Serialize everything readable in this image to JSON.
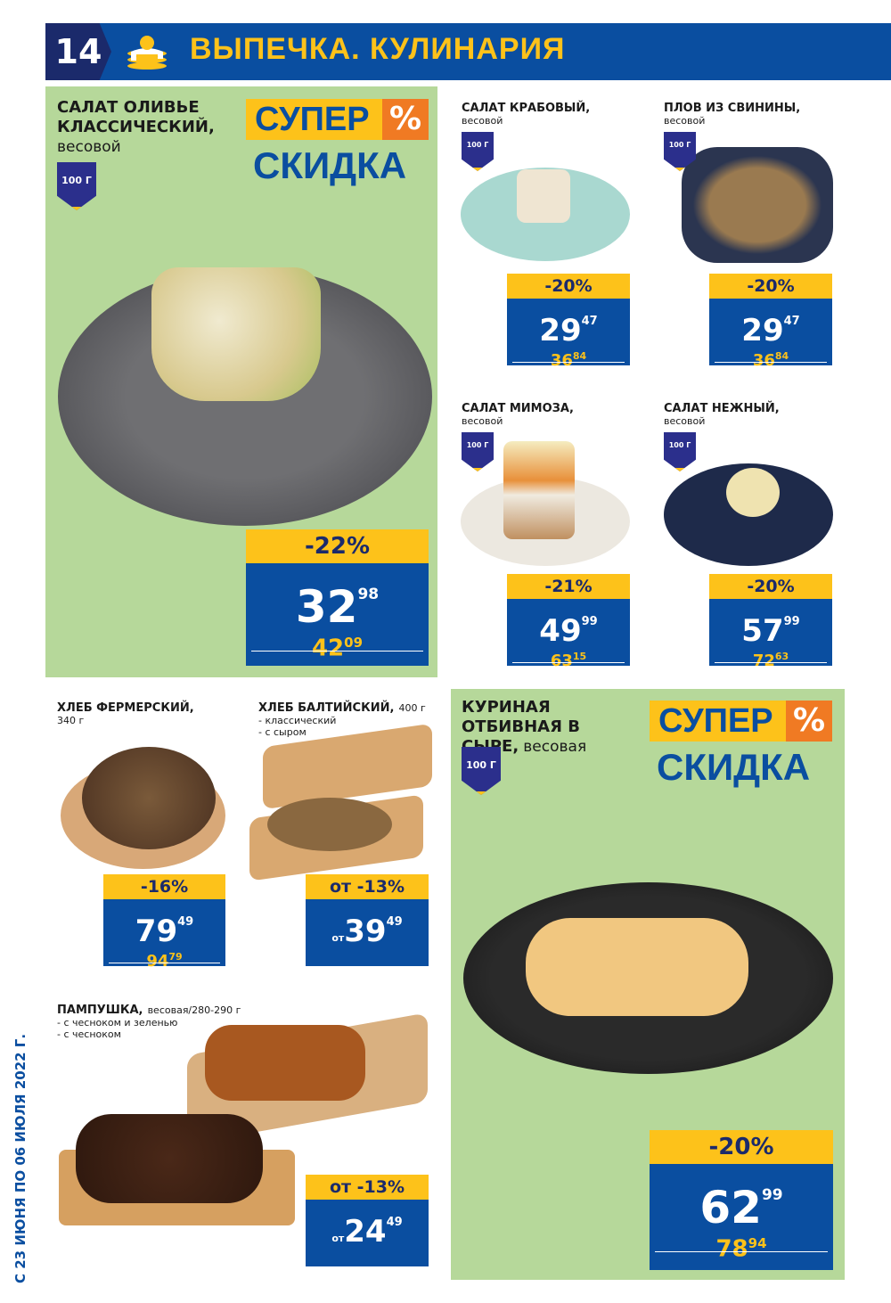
{
  "header": {
    "page_number": "14",
    "title": "ВЫПЕЧКА. КУЛИНАРИЯ",
    "icon": "pancake-stack-icon"
  },
  "colors": {
    "blue": "#0a4ea0",
    "yellow": "#fdc21a",
    "green": "#b6d89a",
    "navy": "#1b2a6b",
    "orange": "#f07a23"
  },
  "super_badge": {
    "line1": "СУПЕР",
    "percent": "%",
    "line2": "СКИДКА"
  },
  "validity": "С 23 ИЮНЯ ПО 06 ИЮЛЯ 2022 Г.",
  "products": [
    {
      "id": "olivie",
      "title": "САЛАТ ОЛИВЬЕ КЛАССИЧЕСКИЙ,",
      "sub": [
        "весовой"
      ],
      "weight": "100 Г",
      "discount": "-22%",
      "price_int": "32",
      "price_cents": "98",
      "old_int": "42",
      "old_cents": "09",
      "prefix": ""
    },
    {
      "id": "crab",
      "title": "САЛАТ КРАБОВЫЙ,",
      "sub": [
        "весовой"
      ],
      "weight": "100 Г",
      "discount": "-20%",
      "price_int": "29",
      "price_cents": "47",
      "old_int": "36",
      "old_cents": "84",
      "prefix": ""
    },
    {
      "id": "plov",
      "title": "ПЛОВ ИЗ СВИНИНЫ,",
      "sub": [
        "весовой"
      ],
      "weight": "100 Г",
      "discount": "-20%",
      "price_int": "29",
      "price_cents": "47",
      "old_int": "36",
      "old_cents": "84",
      "prefix": ""
    },
    {
      "id": "mimoza",
      "title": "САЛАТ МИМОЗА,",
      "sub": [
        "весовой"
      ],
      "weight": "100 Г",
      "discount": "-21%",
      "price_int": "49",
      "price_cents": "99",
      "old_int": "63",
      "old_cents": "15",
      "prefix": ""
    },
    {
      "id": "nezhny",
      "title": "САЛАТ НЕЖНЫЙ,",
      "sub": [
        "весовой"
      ],
      "weight": "100 Г",
      "discount": "-20%",
      "price_int": "57",
      "price_cents": "99",
      "old_int": "72",
      "old_cents": "63",
      "prefix": ""
    },
    {
      "id": "fermer",
      "title": "ХЛЕБ ФЕРМЕРСКИЙ,",
      "sub": [
        "340 г"
      ],
      "weight": "",
      "discount": "-16%",
      "price_int": "79",
      "price_cents": "49",
      "old_int": "94",
      "old_cents": "79",
      "prefix": ""
    },
    {
      "id": "baltic",
      "title": "ХЛЕБ БАЛТИЙСКИЙ,",
      "title_extra": "400 г",
      "sub": [
        "- классический",
        "- с сыром"
      ],
      "weight": "",
      "discount": "от -13%",
      "price_int": "39",
      "price_cents": "49",
      "old_int": "",
      "old_cents": "",
      "prefix": "от"
    },
    {
      "id": "pamp",
      "title": "ПАМПУШКА,",
      "title_extra": "весовая/280-290 г",
      "sub": [
        "- с чесноком и зеленью",
        "- с чесноком"
      ],
      "weight": "",
      "discount": "от -13%",
      "price_int": "24",
      "price_cents": "49",
      "old_int": "",
      "old_cents": "",
      "prefix": "от"
    },
    {
      "id": "chicken",
      "title": "КУРИНАЯ ОТБИВНАЯ В СЫРЕ,",
      "title_extra": "весовая",
      "sub": [],
      "weight": "100 Г",
      "discount": "-20%",
      "price_int": "62",
      "price_cents": "99",
      "old_int": "78",
      "old_cents": "94",
      "prefix": ""
    }
  ]
}
